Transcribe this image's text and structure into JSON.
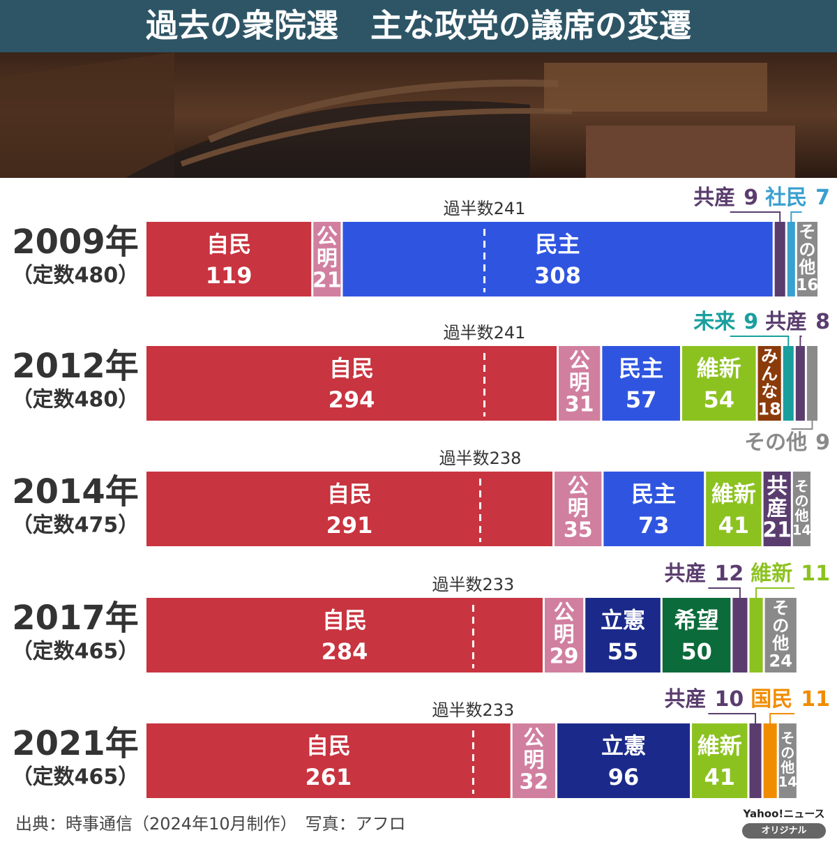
{
  "chart_data": {
    "type": "bar",
    "orientation": "horizontal",
    "stacked": true,
    "title": "過去の衆院選　主な政党の議席の変遷",
    "xlim": [
      0,
      480
    ],
    "groups": [
      {
        "label": "2009年",
        "sublabel": "（定数480）",
        "majority_label": "過半数",
        "majority": 241,
        "segments": [
          {
            "name": "自民",
            "value": 119,
            "color": "#c8343f"
          },
          {
            "name": "公明",
            "value": 21,
            "color": "#d17f9f"
          },
          {
            "name": "民主",
            "value": 308,
            "color": "#2f55e0"
          },
          {
            "name": "共産",
            "value": 9,
            "color": "#5a3d6e"
          },
          {
            "name": "社民",
            "value": 7,
            "color": "#3aa0d0"
          },
          {
            "name": "その他",
            "value": 16,
            "color": "#8a8a8a"
          }
        ]
      },
      {
        "label": "2012年",
        "sublabel": "（定数480）",
        "majority_label": "過半数",
        "majority": 241,
        "segments": [
          {
            "name": "自民",
            "value": 294,
            "color": "#c8343f"
          },
          {
            "name": "公明",
            "value": 31,
            "color": "#d17f9f"
          },
          {
            "name": "民主",
            "value": 57,
            "color": "#2f55e0"
          },
          {
            "name": "維新",
            "value": 54,
            "color": "#8cc220"
          },
          {
            "name": "みんな",
            "value": 18,
            "color": "#8b3a0a"
          },
          {
            "name": "未来",
            "value": 9,
            "color": "#1a9e9e"
          },
          {
            "name": "共産",
            "value": 8,
            "color": "#5a3d6e"
          },
          {
            "name": "その他",
            "value": 9,
            "color": "#8a8a8a"
          }
        ]
      },
      {
        "label": "2014年",
        "sublabel": "（定数475）",
        "majority_label": "過半数",
        "majority": 238,
        "segments": [
          {
            "name": "自民",
            "value": 291,
            "color": "#c8343f"
          },
          {
            "name": "公明",
            "value": 35,
            "color": "#d17f9f"
          },
          {
            "name": "民主",
            "value": 73,
            "color": "#2f55e0"
          },
          {
            "name": "維新",
            "value": 41,
            "color": "#8cc220"
          },
          {
            "name": "共産",
            "value": 21,
            "color": "#5a3d6e"
          },
          {
            "name": "その他",
            "value": 14,
            "color": "#8a8a8a"
          }
        ]
      },
      {
        "label": "2017年",
        "sublabel": "（定数465）",
        "majority_label": "過半数",
        "majority": 233,
        "segments": [
          {
            "name": "自民",
            "value": 284,
            "color": "#c8343f"
          },
          {
            "name": "公明",
            "value": 29,
            "color": "#d17f9f"
          },
          {
            "name": "立憲",
            "value": 55,
            "color": "#1b2a8a"
          },
          {
            "name": "希望",
            "value": 50,
            "color": "#0b6b3a"
          },
          {
            "name": "共産",
            "value": 12,
            "color": "#5a3d6e"
          },
          {
            "name": "維新",
            "value": 11,
            "color": "#8cc220"
          },
          {
            "name": "その他",
            "value": 24,
            "color": "#8a8a8a"
          }
        ]
      },
      {
        "label": "2021年",
        "sublabel": "（定数465）",
        "majority_label": "過半数",
        "majority": 233,
        "segments": [
          {
            "name": "自民",
            "value": 261,
            "color": "#c8343f"
          },
          {
            "name": "公明",
            "value": 32,
            "color": "#d17f9f"
          },
          {
            "name": "立憲",
            "value": 96,
            "color": "#1b2a8a"
          },
          {
            "name": "維新",
            "value": 41,
            "color": "#8cc220"
          },
          {
            "name": "共産",
            "value": 10,
            "color": "#5a3d6e"
          },
          {
            "name": "国民",
            "value": 11,
            "color": "#f08c00"
          },
          {
            "name": "その他",
            "value": 14,
            "color": "#8a8a8a"
          }
        ]
      }
    ],
    "source": "出典：時事通信（2024年10月制作）　写真：アフロ",
    "brand": {
      "name": "Yahoo!ニュース",
      "badge": "オリジナル"
    }
  }
}
